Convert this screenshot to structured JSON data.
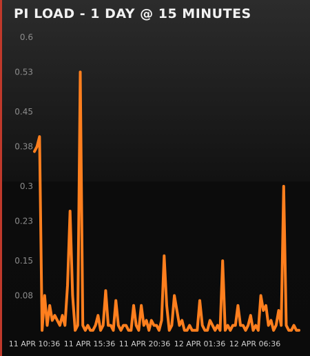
{
  "title": "PI LOAD - 1 DAY @ 15 MINUTES",
  "colors": {
    "line": "#ff7f1e",
    "accent": "#c0392b",
    "background": "#0b0b0b"
  },
  "chart_data": {
    "type": "line",
    "title": "PI LOAD - 1 DAY @ 15 MINUTES",
    "xlabel": "",
    "ylabel": "",
    "ylim": [
      0,
      0.6
    ],
    "y_ticks": [
      "0.6",
      "0.53",
      "0.45",
      "0.38",
      "0.3",
      "0.23",
      "0.15",
      "0.08"
    ],
    "x_ticks": [
      "11 APR 10:36",
      "11 APR 15:36",
      "11 APR 20:36",
      "12 APR 01:36",
      "12 APR 06:36"
    ],
    "grid": false,
    "series": [
      {
        "values": [
          0.37,
          0.38,
          0.4,
          0.01,
          0.08,
          0.02,
          0.06,
          0.03,
          0.04,
          0.03,
          0.02,
          0.04,
          0.02,
          0.1,
          0.25,
          0.08,
          0.01,
          0.02,
          0.53,
          0.02,
          0.01,
          0.02,
          0.01,
          0.01,
          0.02,
          0.04,
          0.01,
          0.02,
          0.09,
          0.02,
          0.02,
          0.01,
          0.07,
          0.02,
          0.01,
          0.02,
          0.02,
          0.01,
          0.01,
          0.06,
          0.02,
          0.01,
          0.06,
          0.02,
          0.03,
          0.01,
          0.03,
          0.02,
          0.02,
          0.01,
          0.03,
          0.16,
          0.06,
          0.01,
          0.02,
          0.08,
          0.05,
          0.02,
          0.03,
          0.01,
          0.01,
          0.02,
          0.01,
          0.01,
          0.01,
          0.07,
          0.02,
          0.01,
          0.01,
          0.03,
          0.02,
          0.01,
          0.02,
          0.01,
          0.15,
          0.01,
          0.02,
          0.01,
          0.02,
          0.02,
          0.06,
          0.02,
          0.02,
          0.01,
          0.02,
          0.04,
          0.01,
          0.02,
          0.01,
          0.08,
          0.05,
          0.06,
          0.02,
          0.03,
          0.01,
          0.02,
          0.05,
          0.02,
          0.3,
          0.02,
          0.01,
          0.01,
          0.02,
          0.01,
          0.01
        ]
      }
    ]
  }
}
